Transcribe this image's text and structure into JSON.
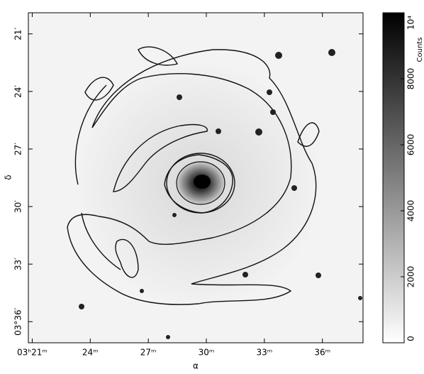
{
  "chart_data": {
    "type": "image",
    "xlabel": "α",
    "ylabel": "δ",
    "xlim": [
      20.8,
      38.1
    ],
    "xticks": [
      {
        "value": 21,
        "label": "03ʰ21ᵐ"
      },
      {
        "value": 24,
        "label": "24ᵐ"
      },
      {
        "value": 27,
        "label": "27ᵐ"
      },
      {
        "value": 30,
        "label": "30ᵐ"
      },
      {
        "value": 33,
        "label": "33ᵐ"
      },
      {
        "value": 36,
        "label": "36ᵐ"
      }
    ],
    "ylim": [
      37.1,
      19.9
    ],
    "yticks": [
      {
        "value": 21,
        "label": "21′"
      },
      {
        "value": 24,
        "label": "24′"
      },
      {
        "value": 27,
        "label": "27′"
      },
      {
        "value": 30,
        "label": "30′"
      },
      {
        "value": 33,
        "label": "33′"
      },
      {
        "value": 36,
        "label": "03°36′"
      }
    ],
    "colorbar": {
      "label": "Counts",
      "lim": [
        0,
        10000
      ],
      "ticks": [
        0,
        2000,
        4000,
        6000,
        8000,
        {
          "value": 10000,
          "label": "10⁴"
        }
      ]
    }
  }
}
